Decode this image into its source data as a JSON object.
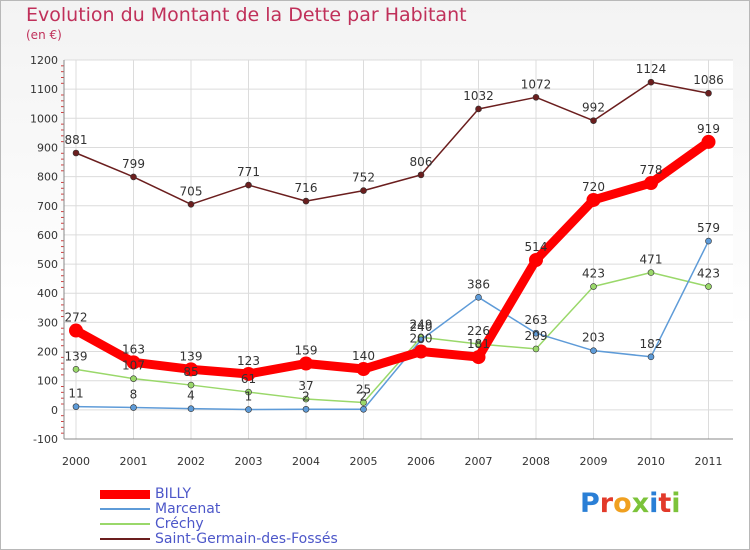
{
  "header": {
    "title": "Evolution du Montant de la Dette par Habitant",
    "unit": "(en €)"
  },
  "logo": {
    "letters": [
      "P",
      "r",
      "o",
      "x",
      "i",
      "t",
      "i"
    ],
    "colors": [
      "#2a7fd6",
      "#e23a2a",
      "#f0a020",
      "#7cc33a",
      "#2a7fd6",
      "#e23a2a",
      "#7cc33a"
    ]
  },
  "chart_data": {
    "type": "line",
    "x": [
      "2000",
      "2001",
      "2002",
      "2003",
      "2004",
      "2005",
      "2006",
      "2007",
      "2008",
      "2009",
      "2010",
      "2011"
    ],
    "ylim": [
      -100,
      1200
    ],
    "yticks": [
      "-100",
      "0",
      "100",
      "200",
      "300",
      "400",
      "500",
      "600",
      "700",
      "800",
      "900",
      "1000",
      "1100",
      "1200"
    ],
    "grid": true,
    "legend_position": "bottom-left",
    "series": [
      {
        "name": "BILLY",
        "color": "#ff0000",
        "values": [
          272,
          163,
          139,
          123,
          159,
          140,
          200,
          181,
          514,
          720,
          778,
          919
        ],
        "labels": [
          "272",
          "163",
          "139",
          "123",
          "159",
          "140",
          "200",
          "181",
          "514",
          "720",
          "778",
          "919"
        ]
      },
      {
        "name": "Marcenat",
        "color": "#5e9bd8",
        "values": [
          11,
          8,
          4,
          1,
          2,
          2,
          240,
          386,
          263,
          203,
          182,
          579
        ],
        "labels": [
          "11",
          "8",
          "4",
          "1",
          "2",
          "2",
          "240",
          "386",
          "263",
          "203",
          "182",
          "579"
        ]
      },
      {
        "name": "Créchy",
        "color": "#9ad86a",
        "values": [
          139,
          107,
          85,
          61,
          37,
          25,
          249,
          226,
          209,
          423,
          471,
          423
        ],
        "labels": [
          "139",
          "107",
          "85",
          "61",
          "37",
          "25",
          "249",
          "226",
          "209",
          "423",
          "471",
          "423"
        ]
      },
      {
        "name": "Saint-Germain-des-Fossés",
        "color": "#6b1e1e",
        "values": [
          881,
          799,
          705,
          771,
          716,
          752,
          806,
          1032,
          1072,
          992,
          1124,
          1086
        ],
        "labels": [
          "881",
          "799",
          "705",
          "771",
          "716",
          "752",
          "806",
          "1032",
          "1072",
          "992",
          "1124",
          "1086"
        ]
      }
    ]
  }
}
